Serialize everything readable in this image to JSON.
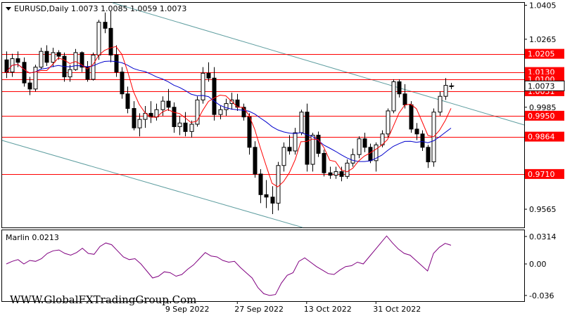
{
  "header": {
    "symbol_line": "EURUSD,Daily  1.0073 1.0085 1.0059 1.0073"
  },
  "indicator": {
    "label": "Marlin 0.0213"
  },
  "watermark": "WWW.GlobalFXTradingGroup.Com",
  "colors": {
    "candle_bull": "#ffffff",
    "candle_bear": "#000000",
    "level_line": "#ff0000",
    "level_label_bg": "#ff0000",
    "ma_fast": "#ff0000",
    "ma_slow": "#0000cc",
    "channel": "#5f9ea0",
    "oscillator": "#800080"
  },
  "chart_data": [
    {
      "type": "candlestick",
      "title": "EURUSD,Daily",
      "ylim": [
        0.949,
        1.0415
      ],
      "price_ticks": [
        "1.0405",
        "1.0265",
        "0.9985",
        "0.9565"
      ],
      "level_lines": [
        {
          "label": "1.0205",
          "value": 1.0205
        },
        {
          "label": "1.0130",
          "value": 1.013
        },
        {
          "label": "1.0100",
          "value": 1.01
        },
        {
          "label": "1.0051",
          "value": 1.0051
        },
        {
          "label": "0.9950",
          "value": 0.995
        },
        {
          "label": "0.9864",
          "value": 0.9864
        },
        {
          "label": "0.9710",
          "value": 0.971
        }
      ],
      "current_price_label": "1.0073",
      "date_labels": [
        {
          "label": "9 Sep 2022",
          "index": 28
        },
        {
          "label": "27 Sep 2022",
          "index": 40
        },
        {
          "label": "13 Oct 2022",
          "index": 52
        },
        {
          "label": "31 Oct 2022",
          "index": 64
        }
      ],
      "candles": [
        [
          1.018,
          1.0215,
          1.0105,
          1.013
        ],
        [
          1.013,
          1.0205,
          1.011,
          1.0185
        ],
        [
          1.0185,
          1.0215,
          1.015,
          1.017
        ],
        [
          1.017,
          1.019,
          1.007,
          1.0085
        ],
        [
          1.0085,
          1.011,
          1.0035,
          1.006
        ],
        [
          1.006,
          1.016,
          1.005,
          1.015
        ],
        [
          1.015,
          1.023,
          1.014,
          1.0215
        ],
        [
          1.0215,
          1.024,
          1.0155,
          1.017
        ],
        [
          1.017,
          1.023,
          1.015,
          1.021
        ],
        [
          1.021,
          1.022,
          1.018,
          1.0195
        ],
        [
          1.0195,
          1.021,
          1.009,
          1.011
        ],
        [
          1.011,
          1.016,
          1.009,
          1.014
        ],
        [
          1.014,
          1.0225,
          1.0135,
          1.021
        ],
        [
          1.021,
          1.0215,
          1.013,
          1.015
        ],
        [
          1.015,
          1.0175,
          1.009,
          1.01
        ],
        [
          1.01,
          1.021,
          1.0095,
          1.02
        ],
        [
          1.02,
          1.0345,
          1.018,
          1.0335
        ],
        [
          1.0335,
          1.0375,
          1.029,
          1.031
        ],
        [
          1.031,
          1.038,
          1.017,
          1.02
        ],
        [
          1.02,
          1.024,
          1.011,
          1.013
        ],
        [
          1.013,
          1.015,
          1.002,
          1.004
        ],
        [
          1.004,
          1.007,
          0.996,
          0.998
        ],
        [
          0.998,
          1.001,
          0.989,
          0.99
        ],
        [
          0.99,
          0.996,
          0.9865,
          0.9935
        ],
        [
          0.9935,
          0.999,
          0.99,
          0.996
        ],
        [
          0.996,
          1.001,
          0.992,
          0.9945
        ],
        [
          0.9945,
          1.0,
          0.993,
          0.9975
        ],
        [
          0.9975,
          1.003,
          0.995,
          1.001
        ],
        [
          1.001,
          1.006,
          0.997,
          0.9985
        ],
        [
          0.9985,
          1.0005,
          0.988,
          0.9905
        ],
        [
          0.9905,
          0.995,
          0.987,
          0.992
        ],
        [
          0.992,
          0.9965,
          0.9865,
          0.9885
        ],
        [
          0.9885,
          0.993,
          0.986,
          0.9915
        ],
        [
          0.9915,
          1.003,
          0.9905,
          1.0015
        ],
        [
          1.0015,
          1.015,
          1.0,
          1.0125
        ],
        [
          1.0125,
          1.017,
          1.009,
          1.0105
        ],
        [
          1.0105,
          1.015,
          0.993,
          0.9955
        ],
        [
          0.9955,
          0.999,
          0.9935,
          0.9975
        ],
        [
          0.9975,
          1.002,
          0.995,
          1.0
        ],
        [
          1.0,
          1.0045,
          0.9975,
          1.0015
        ],
        [
          1.0015,
          1.004,
          0.997,
          0.9985
        ],
        [
          0.9985,
          1.0,
          0.993,
          0.9945
        ],
        [
          0.9945,
          0.996,
          0.979,
          0.982
        ],
        [
          0.982,
          0.9845,
          0.9695,
          0.971
        ],
        [
          0.971,
          0.973,
          0.959,
          0.9625
        ],
        [
          0.9625,
          0.9685,
          0.957,
          0.9615
        ],
        [
          0.9615,
          0.966,
          0.9545,
          0.959
        ],
        [
          0.959,
          0.976,
          0.956,
          0.9745
        ],
        [
          0.9745,
          0.984,
          0.972,
          0.982
        ],
        [
          0.982,
          0.987,
          0.979,
          0.9805
        ],
        [
          0.9805,
          0.99,
          0.979,
          0.988
        ],
        [
          0.988,
          0.9975,
          0.987,
          0.9965
        ],
        [
          0.9965,
          1.0,
          0.972,
          0.975
        ],
        [
          0.975,
          0.988,
          0.972,
          0.987
        ],
        [
          0.987,
          0.9885,
          0.978,
          0.9795
        ],
        [
          0.9795,
          0.981,
          0.97,
          0.9715
        ],
        [
          0.9715,
          0.974,
          0.969,
          0.9705
        ],
        [
          0.9705,
          0.974,
          0.969,
          0.972
        ],
        [
          0.972,
          0.974,
          0.968,
          0.97
        ],
        [
          0.97,
          0.977,
          0.969,
          0.9755
        ],
        [
          0.9755,
          0.9815,
          0.974,
          0.979
        ],
        [
          0.979,
          0.9865,
          0.9775,
          0.9855
        ],
        [
          0.9855,
          0.988,
          0.98,
          0.982
        ],
        [
          0.982,
          0.9835,
          0.9755,
          0.9765
        ],
        [
          0.9765,
          0.984,
          0.972,
          0.983
        ],
        [
          0.983,
          0.989,
          0.982,
          0.9875
        ],
        [
          0.9875,
          0.998,
          0.986,
          0.997
        ],
        [
          0.997,
          1.01,
          0.996,
          1.009
        ],
        [
          1.009,
          1.01,
          1.0025,
          1.004
        ],
        [
          1.004,
          1.008,
          0.998,
          0.9995
        ],
        [
          0.9995,
          1.001,
          0.988,
          0.9895
        ],
        [
          0.9895,
          0.992,
          0.985,
          0.9875
        ],
        [
          0.9875,
          0.989,
          0.9805,
          0.982
        ],
        [
          0.982,
          0.983,
          0.9735,
          0.976
        ],
        [
          0.976,
          0.998,
          0.974,
          0.9965
        ],
        [
          0.9965,
          1.005,
          0.995,
          1.003
        ],
        [
          1.003,
          1.0105,
          1.0015,
          1.0075
        ],
        [
          1.0073,
          1.0085,
          1.0059,
          1.0073
        ]
      ]
    },
    {
      "type": "line",
      "title": "Marlin 0.0213",
      "ylim": [
        -0.0425,
        0.0385
      ],
      "y_ticks": [
        "0.0314",
        "0.00",
        "-0.036"
      ],
      "series": [
        {
          "values": [
            0.0,
            0.003,
            0.005,
            0.0,
            0.004,
            0.003,
            0.006,
            0.012,
            0.015,
            0.016,
            0.012,
            0.01,
            0.013,
            0.018,
            0.012,
            0.011,
            0.02,
            0.024,
            0.022,
            0.015,
            0.008,
            0.005,
            0.006,
            0.0,
            -0.008,
            -0.016,
            -0.014,
            -0.009,
            -0.01,
            -0.014,
            -0.012,
            -0.006,
            -0.001,
            0.006,
            0.013,
            0.009,
            0.008,
            0.004,
            0.002,
            0.003,
            -0.004,
            -0.01,
            -0.016,
            -0.027,
            -0.034,
            -0.036,
            -0.035,
            -0.022,
            -0.013,
            -0.01,
            0.003,
            0.007,
            0.002,
            -0.003,
            -0.007,
            -0.011,
            -0.012,
            -0.007,
            -0.003,
            -0.002,
            0.002,
            0.0,
            0.008,
            0.016,
            0.024,
            0.032,
            0.024,
            0.017,
            0.012,
            0.01,
            0.004,
            -0.002,
            -0.008,
            0.012,
            0.019,
            0.0235,
            0.0213
          ]
        }
      ]
    }
  ]
}
